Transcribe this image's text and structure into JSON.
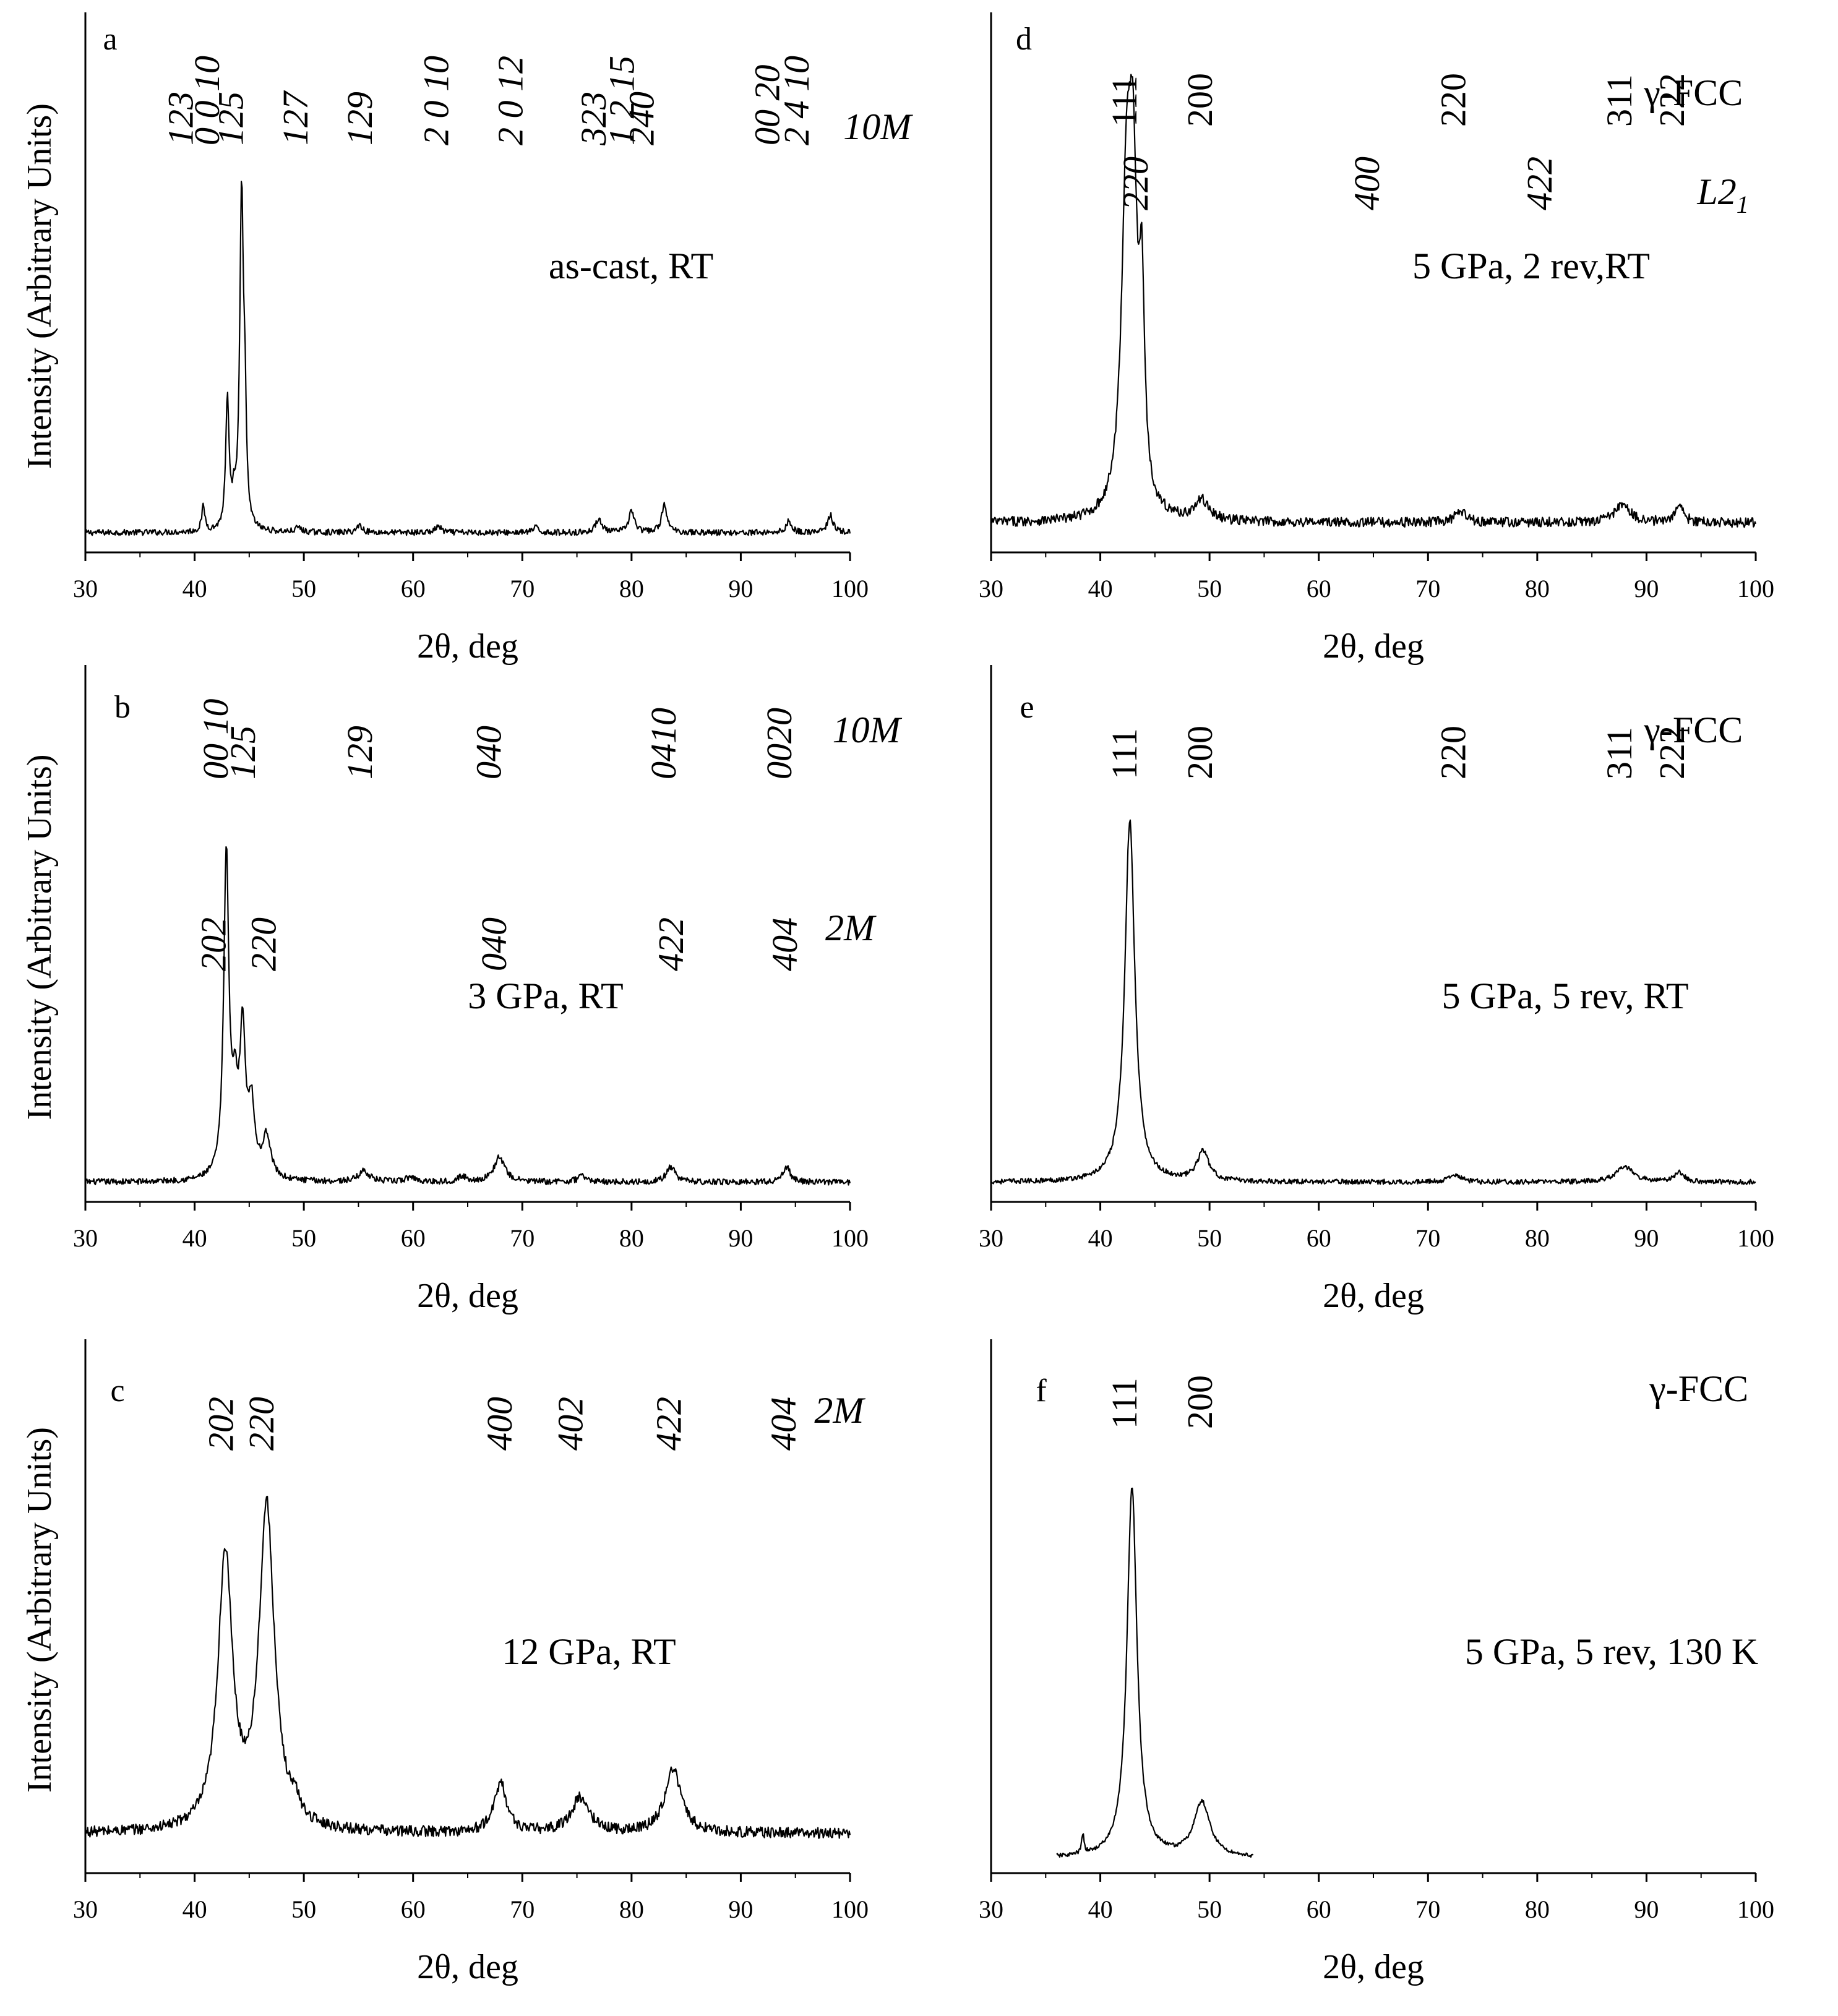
{
  "chart_data": [
    {
      "id": "a",
      "type": "line",
      "panel": "a",
      "xlabel": "2θ, deg",
      "ylabel": "Intensity (Arbitrary Units)",
      "xlim": [
        30,
        100
      ],
      "ylim": [
        0,
        100
      ],
      "xticks": [
        "30",
        "40",
        "50",
        "60",
        "70",
        "80",
        "90",
        "100"
      ],
      "sample_label": "as-cast, RT",
      "phases": [
        {
          "name": "10M",
          "italic": true,
          "subscript": "",
          "row": 0,
          "x": 102.5,
          "annotation_only": true,
          "peaks": [
            {
              "hkl": "123",
              "x": 38.8
            },
            {
              "hkl": "0 0 10",
              "x": 41.2
            },
            {
              "hkl": "125",
              "x": 43.4
            },
            {
              "hkl": "127",
              "x": 49.3
            },
            {
              "hkl": "129",
              "x": 55.2
            },
            {
              "hkl": "2 0 10",
              "x": 62.2
            },
            {
              "hkl": "2 0 12",
              "x": 69.0
            },
            {
              "hkl": "323",
              "x": 76.6
            },
            {
              "hkl": "1 2 15",
              "x": 79.2
            },
            {
              "hkl": "240",
              "x": 81.0
            },
            {
              "hkl": "00 20",
              "x": 92.5
            },
            {
              "hkl": "2 4 10",
              "x": 95.2
            }
          ]
        }
      ],
      "baseline": 3,
      "noise": 0.6,
      "series": [
        {
          "name": "as-cast, RT",
          "peaks": [
            {
              "x": 40.8,
              "h": 5,
              "w": 0.18
            },
            {
              "x": 43.0,
              "h": 26,
              "w": 0.18
            },
            {
              "x": 43.6,
              "h": 5,
              "w": 0.2
            },
            {
              "x": 44.3,
              "h": 67,
              "w": 0.2
            },
            {
              "x": 44.6,
              "h": 20,
              "w": 0.15
            },
            {
              "x": 49.5,
              "h": 1,
              "w": 0.3
            },
            {
              "x": 55.1,
              "h": 1.5,
              "w": 0.3
            },
            {
              "x": 62.3,
              "h": 1.3,
              "w": 0.3
            },
            {
              "x": 71.2,
              "h": 1,
              "w": 0.3
            },
            {
              "x": 77.0,
              "h": 3,
              "w": 0.3
            },
            {
              "x": 80.0,
              "h": 4.5,
              "w": 0.3
            },
            {
              "x": 83.0,
              "h": 5.5,
              "w": 0.3
            },
            {
              "x": 94.4,
              "h": 2.3,
              "w": 0.3
            },
            {
              "x": 98.2,
              "h": 3.5,
              "w": 0.3
            }
          ]
        }
      ]
    },
    {
      "id": "b",
      "type": "line",
      "panel": "b",
      "xlabel": "2θ, deg",
      "ylabel": "Intensity (Arbitrary Units)",
      "xlim": [
        30,
        100
      ],
      "ylim": [
        0,
        100
      ],
      "xticks": [
        "30",
        "40",
        "50",
        "60",
        "70",
        "80",
        "90",
        "100"
      ],
      "sample_label": "3 GPa, RT",
      "phases": [
        {
          "name": "10M",
          "italic": true,
          "subscript": "",
          "row": 0,
          "x": 101.5,
          "peaks": [
            {
              "hkl": "00 10",
              "x": 42.0
            },
            {
              "hkl": "125",
              "x": 44.5
            },
            {
              "hkl": "129",
              "x": 55.2
            },
            {
              "hkl": "040",
              "x": 67.0
            },
            {
              "hkl": "0410",
              "x": 83.0
            },
            {
              "hkl": "0020",
              "x": 93.6
            }
          ]
        },
        {
          "name": "2M",
          "italic": true,
          "subscript": "",
          "row": 1,
          "x": 100.0,
          "peaks": [
            {
              "hkl": "202",
              "x": 41.8
            },
            {
              "hkl": "220",
              "x": 46.4
            },
            {
              "hkl": "040",
              "x": 67.5
            },
            {
              "hkl": "422",
              "x": 83.7
            },
            {
              "hkl": "404",
              "x": 94.1
            }
          ]
        }
      ],
      "baseline": 3,
      "noise": 0.6,
      "series": [
        {
          "name": "3 GPa, RT",
          "peaks": [
            {
              "x": 42.9,
              "h": 65,
              "w": 0.28
            },
            {
              "x": 43.7,
              "h": 14,
              "w": 0.35
            },
            {
              "x": 44.4,
              "h": 28,
              "w": 0.3
            },
            {
              "x": 45.2,
              "h": 14,
              "w": 0.35
            },
            {
              "x": 46.6,
              "h": 8.5,
              "w": 0.45
            },
            {
              "x": 55.5,
              "h": 2.2,
              "w": 0.6
            },
            {
              "x": 59.8,
              "h": 1,
              "w": 0.5
            },
            {
              "x": 64.5,
              "h": 1,
              "w": 0.5
            },
            {
              "x": 67.9,
              "h": 5,
              "w": 0.6
            },
            {
              "x": 75.5,
              "h": 1.2,
              "w": 0.5
            },
            {
              "x": 83.6,
              "h": 3,
              "w": 0.5
            },
            {
              "x": 94.2,
              "h": 3,
              "w": 0.4
            }
          ]
        }
      ]
    },
    {
      "id": "c",
      "type": "line",
      "panel": "c",
      "xlabel": "2θ, deg",
      "ylabel": "Intensity (Arbitrary Units)",
      "xlim": [
        30,
        100
      ],
      "ylim": [
        0,
        100
      ],
      "xticks": [
        "30",
        "40",
        "50",
        "60",
        "70",
        "80",
        "90",
        "100"
      ],
      "sample_label": "12 GPa, RT",
      "phases": [
        {
          "name": "2M",
          "italic": true,
          "subscript": "",
          "row": 0,
          "x": 99.0,
          "peaks": [
            {
              "hkl": "202",
              "x": 42.5
            },
            {
              "hkl": "220",
              "x": 46.2
            },
            {
              "hkl": "400",
              "x": 68.0
            },
            {
              "hkl": "402",
              "x": 74.5
            },
            {
              "hkl": "422",
              "x": 83.5
            },
            {
              "hkl": "404",
              "x": 94.0
            }
          ]
        }
      ],
      "baseline": 7,
      "noise": 1.1,
      "series": [
        {
          "name": "12 GPa, RT",
          "peaks": [
            {
              "x": 42.8,
              "h": 55,
              "w": 0.8
            },
            {
              "x": 46.6,
              "h": 65,
              "w": 0.85
            },
            {
              "x": 49.2,
              "h": 3,
              "w": 0.5
            },
            {
              "x": 68.0,
              "h": 10,
              "w": 0.7
            },
            {
              "x": 75.3,
              "h": 7,
              "w": 1.0
            },
            {
              "x": 83.8,
              "h": 13,
              "w": 0.9
            }
          ]
        }
      ]
    },
    {
      "id": "d",
      "type": "line",
      "panel": "d",
      "xlabel": "2θ, deg",
      "ylabel": "",
      "xlim": [
        30,
        100
      ],
      "ylim": [
        0,
        100
      ],
      "xticks": [
        "30",
        "40",
        "50",
        "60",
        "70",
        "80",
        "90",
        "100"
      ],
      "sample_label": "5 GPa, 2 rev,RT",
      "phases": [
        {
          "name": "γ-FCC",
          "italic": false,
          "subscript": "",
          "row": 0,
          "x": 94.3,
          "peaks": [
            {
              "hkl": "111",
              "x": 42.3
            },
            {
              "hkl": "200",
              "x": 49.2
            },
            {
              "hkl": "220",
              "x": 72.4
            },
            {
              "hkl": "311",
              "x": 87.6
            },
            {
              "hkl": "222",
              "x": 92.4
            }
          ]
        },
        {
          "name": "L2",
          "italic": true,
          "subscript": "1",
          "row": 1,
          "x": 97.0,
          "peaks": [
            {
              "hkl": "220",
              "x": 43.3
            },
            {
              "hkl": "400",
              "x": 64.5
            },
            {
              "hkl": "422",
              "x": 80.3
            }
          ]
        }
      ],
      "baseline": 5,
      "noise": 1.0,
      "series": [
        {
          "name": "5 GPa, 2 rev,RT",
          "peaks": [
            {
              "x": 42.4,
              "h": 62,
              "w": 0.55
            },
            {
              "x": 43.0,
              "h": 55,
              "w": 0.45
            },
            {
              "x": 43.8,
              "h": 38,
              "w": 0.3
            },
            {
              "x": 49.3,
              "h": 4,
              "w": 0.8
            },
            {
              "x": 73.0,
              "h": 2,
              "w": 0.7
            },
            {
              "x": 87.8,
              "h": 3.5,
              "w": 0.9
            },
            {
              "x": 93.0,
              "h": 3,
              "w": 0.5
            }
          ]
        }
      ]
    },
    {
      "id": "e",
      "type": "line",
      "panel": "e",
      "xlabel": "2θ, deg",
      "ylabel": "",
      "xlim": [
        30,
        100
      ],
      "ylim": [
        0,
        100
      ],
      "xticks": [
        "30",
        "40",
        "50",
        "60",
        "70",
        "80",
        "90",
        "100"
      ],
      "sample_label": "5 GPa, 5 rev, RT",
      "phases": [
        {
          "name": "γ-FCC",
          "italic": false,
          "subscript": "",
          "row": 0,
          "x": 94.3,
          "peaks": [
            {
              "hkl": "111",
              "x": 42.3
            },
            {
              "hkl": "200",
              "x": 49.2
            },
            {
              "hkl": "220",
              "x": 72.4
            },
            {
              "hkl": "311",
              "x": 87.6
            },
            {
              "hkl": "222",
              "x": 92.4
            }
          ]
        }
      ],
      "baseline": 3,
      "noise": 0.5,
      "series": [
        {
          "name": "5 GPa, 5 rev, RT",
          "peaks": [
            {
              "x": 42.7,
              "h": 73,
              "w": 0.55
            },
            {
              "x": 49.4,
              "h": 6,
              "w": 0.65
            },
            {
              "x": 72.5,
              "h": 1.5,
              "w": 0.6
            },
            {
              "x": 88.0,
              "h": 3,
              "w": 1.0
            },
            {
              "x": 93.0,
              "h": 2,
              "w": 0.5
            }
          ]
        }
      ]
    },
    {
      "id": "f",
      "type": "line",
      "panel": "f",
      "xlabel": "2θ, deg",
      "ylabel": "",
      "xlim": [
        30,
        100
      ],
      "ylim": [
        0,
        100
      ],
      "xticks": [
        "30",
        "40",
        "50",
        "60",
        "70",
        "80",
        "90",
        "100"
      ],
      "sample_label": "5 GPa, 5 rev, 130 K",
      "data_range": [
        36,
        54
      ],
      "phases": [
        {
          "name": "γ-FCC",
          "italic": false,
          "subscript": "",
          "row": 0,
          "x": 94.8,
          "peaks": [
            {
              "hkl": "111",
              "x": 42.3
            },
            {
              "hkl": "200",
              "x": 49.2
            }
          ]
        }
      ],
      "baseline": 2,
      "noise": 0.4,
      "series": [
        {
          "name": "5 GPa, 5 rev, 130 K",
          "peaks": [
            {
              "x": 38.4,
              "h": 4,
              "w": 0.12
            },
            {
              "x": 42.9,
              "h": 75,
              "w": 0.55
            },
            {
              "x": 49.3,
              "h": 11,
              "w": 0.9
            }
          ]
        }
      ]
    }
  ]
}
